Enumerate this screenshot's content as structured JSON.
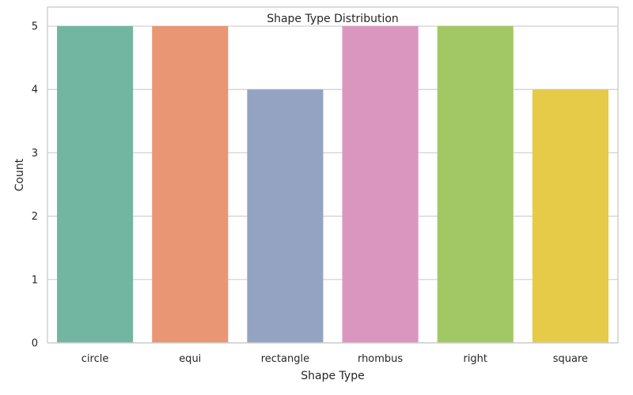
{
  "chart_data": {
    "type": "bar",
    "title": "Shape Type Distribution",
    "xlabel": "Shape Type",
    "ylabel": "Count",
    "categories": [
      "circle",
      "equi",
      "rectangle",
      "rhombus",
      "right",
      "square"
    ],
    "values": [
      5,
      5,
      4,
      5,
      5,
      4
    ],
    "colors": [
      "#72b6a1",
      "#e99675",
      "#95a3c3",
      "#db96c0",
      "#a2c865",
      "#e5cb48"
    ],
    "ylim": [
      0,
      5.3
    ],
    "yticks": [
      0,
      1,
      2,
      3,
      4,
      5
    ],
    "grid": true,
    "legend": "none"
  }
}
